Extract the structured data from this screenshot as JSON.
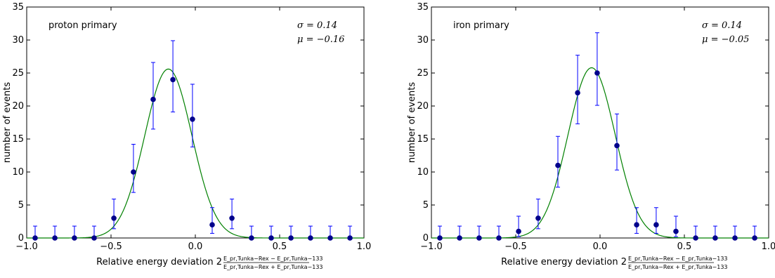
{
  "chart_data": [
    {
      "type": "scatter",
      "annotation": "proton primary",
      "sigma_text": "σ = 0.14",
      "mu_text": "μ = −0.16",
      "xlabel": "Relative energy deviation 2",
      "frac_num": "E_pr,Tunka−Rex − E_pr,Tunka−133",
      "frac_den": "E_pr,Tunka−Rex + E_pr,Tunka−133",
      "ylabel": "number of events",
      "xlim": [
        -1.0,
        1.0
      ],
      "ylim": [
        0,
        35
      ],
      "xticks": [
        "−1.0",
        "−0.5",
        "0.0",
        "0.5",
        "1.0"
      ],
      "xtick_values": [
        -1.0,
        -0.5,
        0.0,
        0.5,
        1.0
      ],
      "yticks": [
        0,
        5,
        10,
        15,
        20,
        25,
        30,
        35
      ],
      "points": {
        "x": [
          -0.95,
          -0.833,
          -0.717,
          -0.6,
          -0.483,
          -0.367,
          -0.25,
          -0.133,
          -0.017,
          0.1,
          0.217,
          0.333,
          0.45,
          0.567,
          0.683,
          0.8,
          0.917
        ],
        "y": [
          0,
          0,
          0,
          0,
          3,
          10,
          21,
          24,
          18,
          2,
          3,
          0,
          0,
          0,
          0,
          0,
          0
        ],
        "err_low": [
          0,
          0,
          0,
          0,
          1.6,
          3.1,
          4.5,
          4.9,
          4.2,
          1.3,
          1.6,
          0,
          0,
          0,
          0,
          0,
          0
        ],
        "err_high": [
          1.8,
          1.8,
          1.8,
          1.8,
          2.9,
          4.2,
          5.6,
          5.9,
          5.3,
          2.6,
          2.9,
          1.8,
          1.8,
          1.8,
          1.8,
          1.8,
          1.8
        ]
      },
      "fit": {
        "amplitude": 25.6,
        "mean": -0.16,
        "sigma": 0.14,
        "color": "#008000"
      },
      "marker_color": "#00008b",
      "errorbar_color": "#0000ff"
    },
    {
      "type": "scatter",
      "annotation": "iron primary",
      "sigma_text": "σ = 0.14",
      "mu_text": "μ = −0.05",
      "xlabel": "Relative energy deviation 2",
      "frac_num": "E_pr,Tunka−Rex − E_pr,Tunka−133",
      "frac_den": "E_pr,Tunka−Rex + E_pr,Tunka−133",
      "ylabel": "number of events",
      "xlim": [
        -1.0,
        1.0
      ],
      "ylim": [
        0,
        35
      ],
      "xticks": [
        "−1.0",
        "−0.5",
        "0.0",
        "0.5",
        "1.0"
      ],
      "xtick_values": [
        -1.0,
        -0.5,
        0.0,
        0.5,
        1.0
      ],
      "yticks": [
        0,
        5,
        10,
        15,
        20,
        25,
        30,
        35
      ],
      "points": {
        "x": [
          -0.95,
          -0.833,
          -0.717,
          -0.6,
          -0.483,
          -0.367,
          -0.25,
          -0.133,
          -0.017,
          0.1,
          0.217,
          0.333,
          0.45,
          0.567,
          0.683,
          0.8,
          0.917
        ],
        "y": [
          0,
          0,
          0,
          0,
          1,
          3,
          11,
          22,
          25,
          14,
          2,
          2,
          1,
          0,
          0,
          0,
          0
        ],
        "err_low": [
          0,
          0,
          0,
          0,
          0.8,
          1.6,
          3.3,
          4.7,
          4.9,
          3.7,
          1.3,
          1.3,
          0.8,
          0,
          0,
          0,
          0
        ],
        "err_high": [
          1.8,
          1.8,
          1.8,
          1.8,
          2.3,
          2.9,
          4.4,
          5.7,
          6.1,
          4.8,
          2.6,
          2.6,
          2.3,
          1.8,
          1.8,
          1.8,
          1.8
        ]
      },
      "fit": {
        "amplitude": 25.8,
        "mean": -0.05,
        "sigma": 0.14,
        "color": "#008000"
      },
      "marker_color": "#00008b",
      "errorbar_color": "#0000ff"
    }
  ]
}
